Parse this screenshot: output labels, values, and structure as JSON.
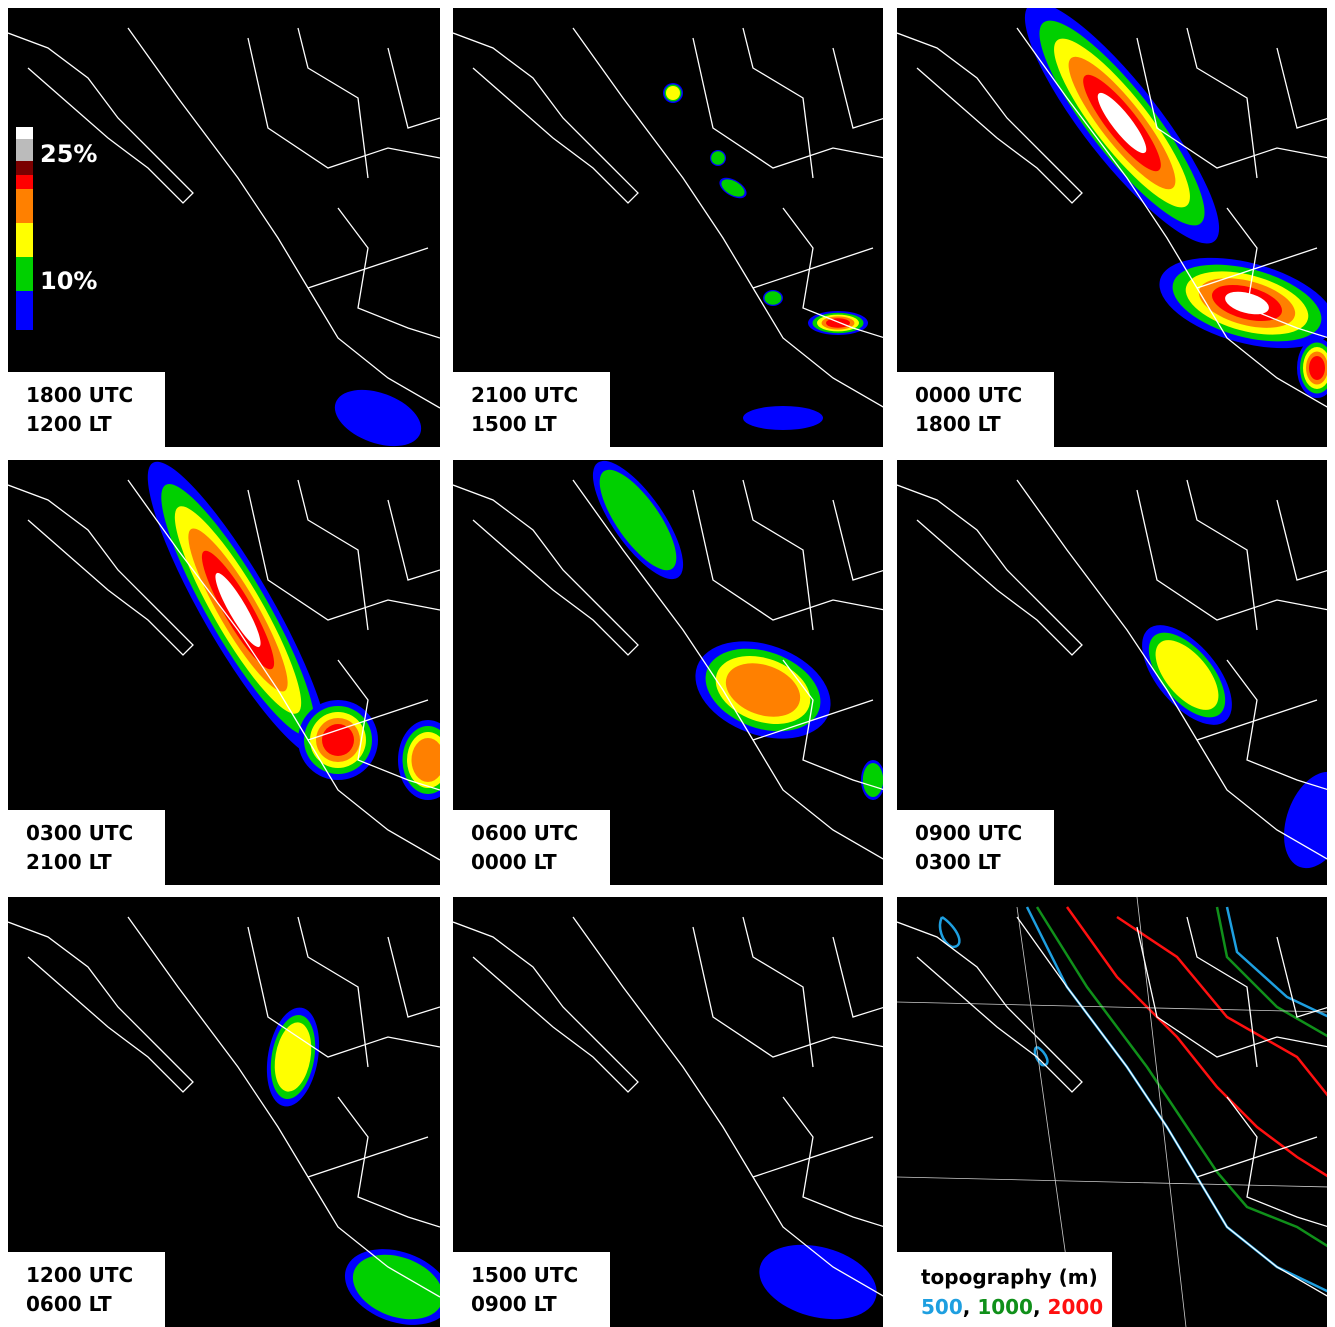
{
  "panels": [
    {
      "utc": "1800 UTC",
      "lt": "1200 LT"
    },
    {
      "utc": "2100 UTC",
      "lt": "1500 LT"
    },
    {
      "utc": "0000 UTC",
      "lt": "1800 LT"
    },
    {
      "utc": "0300 UTC",
      "lt": "2100 LT"
    },
    {
      "utc": "0600 UTC",
      "lt": "0000 LT"
    },
    {
      "utc": "0900 UTC",
      "lt": "0300 LT"
    },
    {
      "utc": "1200 UTC",
      "lt": "0600 LT"
    },
    {
      "utc": "1500 UTC",
      "lt": "0900 LT"
    }
  ],
  "legend": {
    "labels": [
      "25%",
      "10%"
    ]
  },
  "topography": {
    "title": "topography (m)",
    "separator": ", ",
    "levels": [
      {
        "label": "500",
        "color": "#1e9fe0"
      },
      {
        "label": "1000",
        "color": "#10901a"
      },
      {
        "label": "2000",
        "color": "#ff1010"
      }
    ]
  }
}
